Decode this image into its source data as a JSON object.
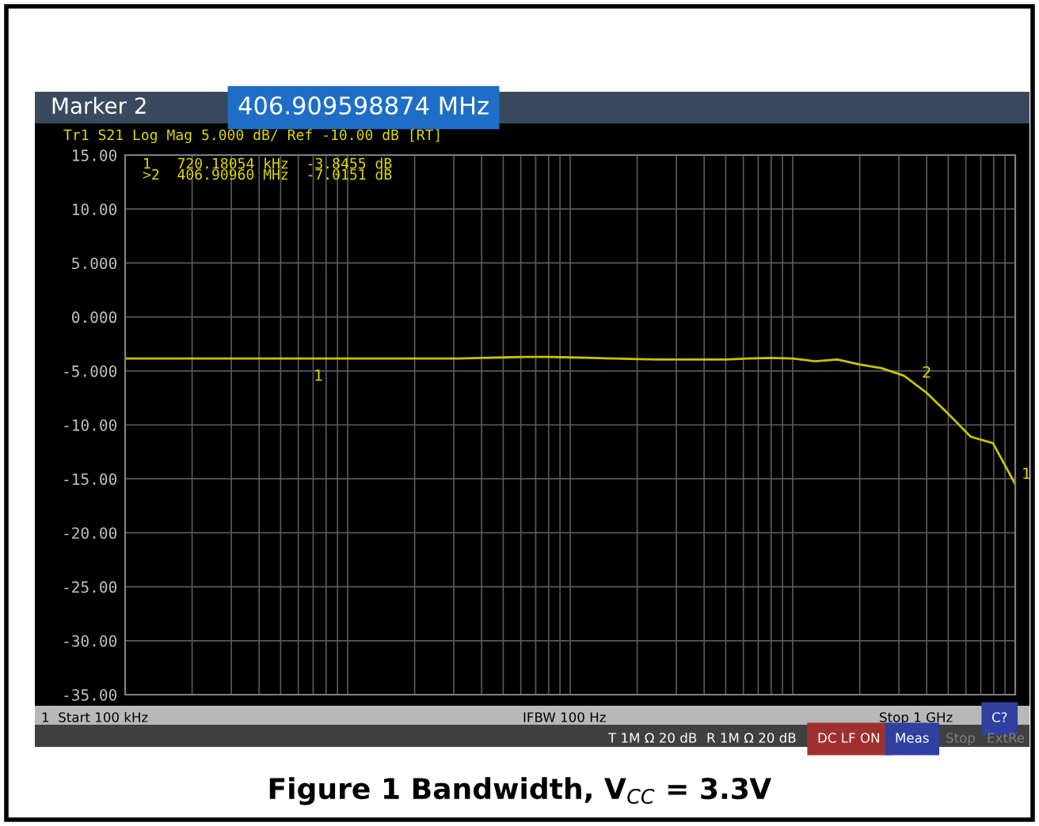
{
  "chart_data": {
    "type": "line",
    "title": "Figure 1 Bandwidth, V$_{CC}$ = 3.3V",
    "subtitle": "Tr1 S21 Log Mag 5.000 dB/ Ref -10.00 dB [RT]",
    "categories": [
      null,
      null,
      null,
      null,
      null,
      null,
      null,
      null,
      null,
      null,
      null,
      null,
      null,
      null,
      null,
      null,
      null,
      null,
      null,
      null,
      null,
      null,
      null,
      null,
      null,
      null,
      null,
      null,
      null,
      null,
      null,
      null,
      null,
      null,
      null,
      null,
      null,
      null,
      null,
      null,
      null
    ],
    "series": [
      {
        "color": "#c8c400",
        "values": [
          -3.85,
          -3.85,
          -3.85,
          -3.85,
          -3.85,
          -3.85,
          -3.85,
          -3.85,
          -3.85,
          -3.85,
          -3.85,
          -3.85,
          -3.85,
          -3.85,
          -3.85,
          -3.85,
          -3.8,
          -3.75,
          -3.7,
          -3.7,
          -3.75,
          -3.8,
          -3.85,
          -3.9,
          -3.95,
          -3.95,
          -3.95,
          -3.95,
          -3.85,
          -3.8,
          -3.85,
          -4.1,
          -3.95,
          -4.4,
          -4.75,
          -5.45,
          -7.0,
          -9.0,
          -11.1,
          -11.7,
          -15.5
        ]
      }
    ],
    "annotations": [
      "Marker 2",
      "406.909598874 MHz",
      "1   720.18054 kHz  -3.8455 dB",
      ">2  406.90960 MHz  -7.0151 dB",
      "1  Start 100 kHz",
      "IFBW 100 Hz",
      "Stop 1 GHz",
      "C?",
      "T 1M Ω 20 dB",
      "R 1M Ω 20 dB",
      "DC LF ON",
      "Meas",
      "Stop",
      "ExtRe",
      "1",
      "2",
      "1"
    ],
    "grid": true,
    "line_style": "solid",
    "marker": "none",
    "ylim": [
      -35,
      15
    ],
    "yticks": [
      {
        "value": -35,
        "label": "-35.00"
      },
      {
        "value": -30,
        "label": "-30.00"
      },
      {
        "value": -25,
        "label": "-25.00"
      },
      {
        "value": -20,
        "label": "-20.00"
      },
      {
        "value": -15,
        "label": "-15.00"
      },
      {
        "value": -10,
        "label": "-10.00"
      },
      {
        "value": -5,
        "label": "-5.000"
      },
      {
        "value": 0,
        "label": "0.000"
      },
      {
        "value": 5,
        "label": "5.000"
      },
      {
        "value": 10,
        "label": "10.00"
      },
      {
        "value": 15,
        "label": "15.00"
      }
    ]
  }
}
